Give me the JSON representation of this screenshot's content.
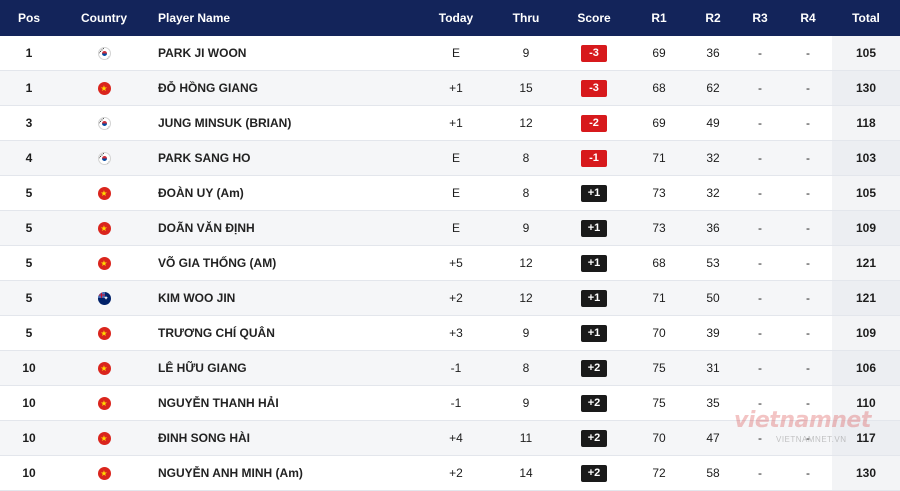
{
  "table": {
    "columns": {
      "pos": "Pos",
      "country": "Country",
      "player_name": "Player Name",
      "today": "Today",
      "thru": "Thru",
      "score": "Score",
      "r1": "R1",
      "r2": "R2",
      "r3": "R3",
      "r4": "R4",
      "total": "Total"
    },
    "rows": [
      {
        "pos": "1",
        "flag": "kr-flag-icon",
        "country_code": "kr",
        "name": "PARK JI WOON",
        "today": "E",
        "thru": "9",
        "score": "-3",
        "score_type": "under",
        "r1": "69",
        "r2": "36",
        "r3": "-",
        "r4": "-",
        "total": "105"
      },
      {
        "pos": "1",
        "flag": "vn-flag-icon",
        "country_code": "vn",
        "name": "ĐỖ HỒNG GIANG",
        "today": "+1",
        "thru": "15",
        "score": "-3",
        "score_type": "under",
        "r1": "68",
        "r2": "62",
        "r3": "-",
        "r4": "-",
        "total": "130"
      },
      {
        "pos": "3",
        "flag": "kr-flag-icon",
        "country_code": "kr",
        "name": "JUNG MINSUK (BRIAN)",
        "today": "+1",
        "thru": "12",
        "score": "-2",
        "score_type": "under",
        "r1": "69",
        "r2": "49",
        "r3": "-",
        "r4": "-",
        "total": "118"
      },
      {
        "pos": "4",
        "flag": "kr-flag-icon",
        "country_code": "kr",
        "name": "PARK SANG HO",
        "today": "E",
        "thru": "8",
        "score": "-1",
        "score_type": "under",
        "r1": "71",
        "r2": "32",
        "r3": "-",
        "r4": "-",
        "total": "103"
      },
      {
        "pos": "5",
        "flag": "vn-flag-icon",
        "country_code": "vn",
        "name": "ĐOÀN UY (Am)",
        "today": "E",
        "thru": "8",
        "score": "+1",
        "score_type": "over",
        "r1": "73",
        "r2": "32",
        "r3": "-",
        "r4": "-",
        "total": "105"
      },
      {
        "pos": "5",
        "flag": "vn-flag-icon",
        "country_code": "vn",
        "name": "DOÃN VĂN ĐỊNH",
        "today": "E",
        "thru": "9",
        "score": "+1",
        "score_type": "over",
        "r1": "73",
        "r2": "36",
        "r3": "-",
        "r4": "-",
        "total": "109"
      },
      {
        "pos": "5",
        "flag": "vn-flag-icon",
        "country_code": "vn",
        "name": "VÕ GIA THỐNG (AM)",
        "today": "+5",
        "thru": "12",
        "score": "+1",
        "score_type": "over",
        "r1": "68",
        "r2": "53",
        "r3": "-",
        "r4": "-",
        "total": "121"
      },
      {
        "pos": "5",
        "flag": "au-flag-icon",
        "country_code": "au",
        "name": "KIM WOO JIN",
        "today": "+2",
        "thru": "12",
        "score": "+1",
        "score_type": "over",
        "r1": "71",
        "r2": "50",
        "r3": "-",
        "r4": "-",
        "total": "121"
      },
      {
        "pos": "5",
        "flag": "vn-flag-icon",
        "country_code": "vn",
        "name": "TRƯƠNG CHÍ QUÂN",
        "today": "+3",
        "thru": "9",
        "score": "+1",
        "score_type": "over",
        "r1": "70",
        "r2": "39",
        "r3": "-",
        "r4": "-",
        "total": "109"
      },
      {
        "pos": "10",
        "flag": "vn-flag-icon",
        "country_code": "vn",
        "name": "LÊ HỮU GIANG",
        "today": "-1",
        "thru": "8",
        "score": "+2",
        "score_type": "over",
        "r1": "75",
        "r2": "31",
        "r3": "-",
        "r4": "-",
        "total": "106"
      },
      {
        "pos": "10",
        "flag": "vn-flag-icon",
        "country_code": "vn",
        "name": "NGUYỄN THANH HẢI",
        "today": "-1",
        "thru": "9",
        "score": "+2",
        "score_type": "over",
        "r1": "75",
        "r2": "35",
        "r3": "-",
        "r4": "-",
        "total": "110"
      },
      {
        "pos": "10",
        "flag": "vn-flag-icon",
        "country_code": "vn",
        "name": "ĐINH SONG HÀI",
        "today": "+4",
        "thru": "11",
        "score": "+2",
        "score_type": "over",
        "r1": "70",
        "r2": "47",
        "r3": "-",
        "r4": "-",
        "total": "117"
      },
      {
        "pos": "10",
        "flag": "vn-flag-icon",
        "country_code": "vn",
        "name": "NGUYỄN ANH MINH (Am)",
        "today": "+2",
        "thru": "14",
        "score": "+2",
        "score_type": "over",
        "r1": "72",
        "r2": "58",
        "r3": "-",
        "r4": "-",
        "total": "130"
      }
    ]
  },
  "colors": {
    "header_bg": "#13245a",
    "score_under": "#d7191c",
    "score_over": "#1a1a1a"
  },
  "watermark": {
    "logo_text": "vietnamnet",
    "sub_text": "VIETNAMNET.VN"
  }
}
